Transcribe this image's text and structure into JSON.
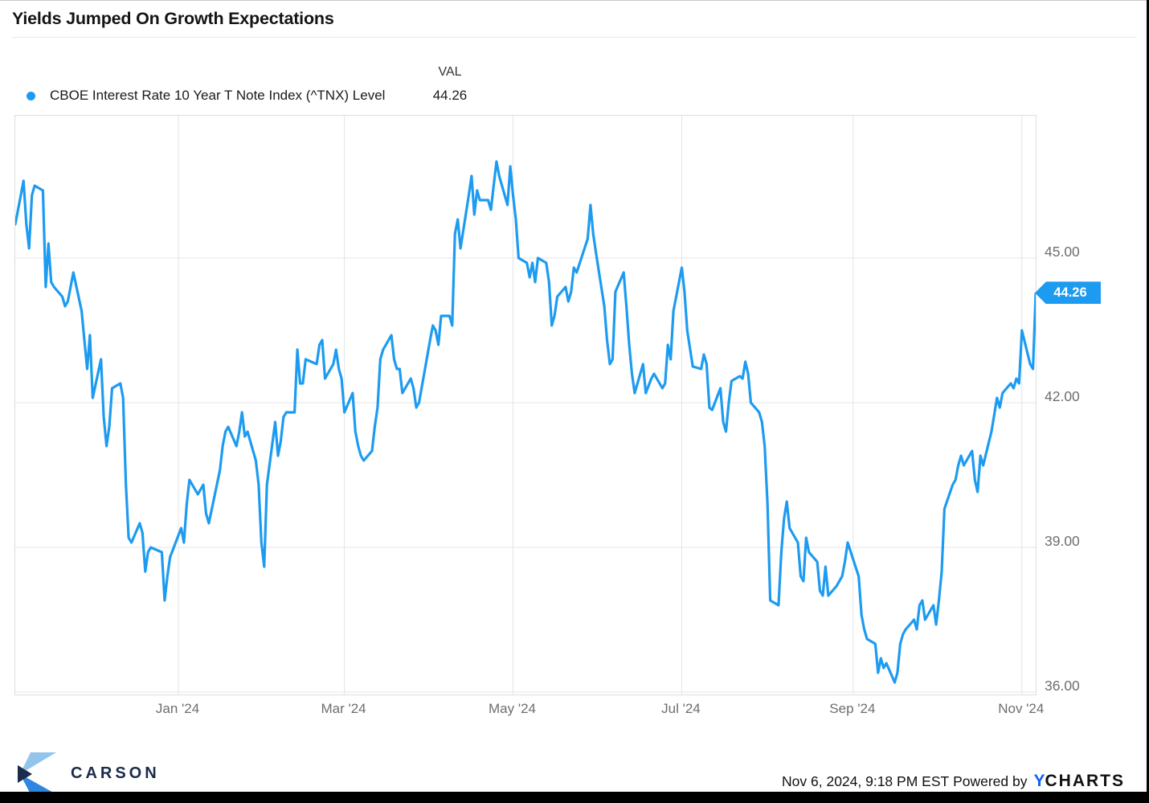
{
  "title": "Yields Jumped On Growth Expectations",
  "legend": {
    "val_header": "VAL",
    "series_label": "CBOE Interest Rate 10 Year T Note Index (^TNX) Level",
    "value": "44.26"
  },
  "badge": {
    "text": "44.26"
  },
  "colors": {
    "accent": "#1d9bf0",
    "grid": "#e4e4e4",
    "axis_text": "#6e6e6e",
    "carson_navy": "#1b2b4b",
    "carson_light": "#93c4ec",
    "carson_mid": "#2e86e0",
    "ycharts_blue": "#0b63f6"
  },
  "footer": {
    "carson": "CARSON",
    "timestamp": "Nov 6, 2024, 9:18 PM EST",
    "powered_by": "Powered by",
    "ycharts_y": "Y",
    "ycharts_rest": "CHARTS"
  },
  "chart_data": {
    "type": "line",
    "title": "Yields Jumped On Growth Expectations",
    "series_name": "CBOE Interest Rate 10 Year T Note Index (^TNX) Level",
    "xlabel": "",
    "ylabel": "",
    "legend_position": "top-left",
    "grid": true,
    "ylim": [
      35.95,
      47.95
    ],
    "x_range_days": 369,
    "last_value": 44.26,
    "y_ticks": [
      {
        "label": "45.00",
        "value": 45
      },
      {
        "label": "42.00",
        "value": 42
      },
      {
        "label": "39.00",
        "value": 39
      },
      {
        "label": "36.00",
        "value": 36
      }
    ],
    "x_ticks": [
      {
        "label": "Jan '24",
        "day": 59
      },
      {
        "label": "Mar '24",
        "day": 119
      },
      {
        "label": "May '24",
        "day": 180
      },
      {
        "label": "Jul '24",
        "day": 241
      },
      {
        "label": "Sep '24",
        "day": 303
      },
      {
        "label": "Nov '24",
        "day": 364
      }
    ],
    "points": [
      [
        0,
        45.7
      ],
      [
        3,
        46.6
      ],
      [
        4,
        45.7
      ],
      [
        5,
        45.2
      ],
      [
        6,
        46.3
      ],
      [
        7,
        46.5
      ],
      [
        10,
        46.4
      ],
      [
        11,
        44.4
      ],
      [
        12,
        45.3
      ],
      [
        13,
        44.5
      ],
      [
        14,
        44.4
      ],
      [
        17,
        44.2
      ],
      [
        18,
        44.0
      ],
      [
        19,
        44.1
      ],
      [
        21,
        44.7
      ],
      [
        24,
        43.9
      ],
      [
        25,
        43.3
      ],
      [
        26,
        42.7
      ],
      [
        27,
        43.4
      ],
      [
        28,
        42.1
      ],
      [
        31,
        42.9
      ],
      [
        32,
        41.7
      ],
      [
        33,
        41.1
      ],
      [
        34,
        41.5
      ],
      [
        35,
        42.3
      ],
      [
        38,
        42.4
      ],
      [
        39,
        42.1
      ],
      [
        40,
        40.3
      ],
      [
        41,
        39.2
      ],
      [
        42,
        39.1
      ],
      [
        45,
        39.5
      ],
      [
        46,
        39.3
      ],
      [
        47,
        38.5
      ],
      [
        48,
        38.9
      ],
      [
        49,
        39.0
      ],
      [
        53,
        38.9
      ],
      [
        54,
        37.9
      ],
      [
        55,
        38.4
      ],
      [
        56,
        38.8
      ],
      [
        60,
        39.4
      ],
      [
        61,
        39.1
      ],
      [
        62,
        39.9
      ],
      [
        63,
        40.4
      ],
      [
        66,
        40.1
      ],
      [
        67,
        40.2
      ],
      [
        68,
        40.3
      ],
      [
        69,
        39.7
      ],
      [
        70,
        39.5
      ],
      [
        74,
        40.6
      ],
      [
        75,
        41.1
      ],
      [
        76,
        41.4
      ],
      [
        77,
        41.5
      ],
      [
        80,
        41.1
      ],
      [
        81,
        41.4
      ],
      [
        82,
        41.8
      ],
      [
        83,
        41.3
      ],
      [
        84,
        41.4
      ],
      [
        87,
        40.8
      ],
      [
        88,
        40.3
      ],
      [
        89,
        39.1
      ],
      [
        90,
        38.6
      ],
      [
        91,
        40.3
      ],
      [
        94,
        41.6
      ],
      [
        95,
        40.9
      ],
      [
        96,
        41.2
      ],
      [
        97,
        41.7
      ],
      [
        98,
        41.8
      ],
      [
        101,
        41.8
      ],
      [
        102,
        43.1
      ],
      [
        103,
        42.4
      ],
      [
        104,
        42.4
      ],
      [
        105,
        42.9
      ],
      [
        109,
        42.8
      ],
      [
        110,
        43.2
      ],
      [
        111,
        43.3
      ],
      [
        112,
        42.5
      ],
      [
        115,
        42.8
      ],
      [
        116,
        43.1
      ],
      [
        117,
        42.7
      ],
      [
        118,
        42.5
      ],
      [
        119,
        41.8
      ],
      [
        122,
        42.2
      ],
      [
        123,
        41.4
      ],
      [
        124,
        41.1
      ],
      [
        125,
        40.9
      ],
      [
        126,
        40.8
      ],
      [
        129,
        41.0
      ],
      [
        130,
        41.5
      ],
      [
        131,
        41.9
      ],
      [
        132,
        42.9
      ],
      [
        133,
        43.1
      ],
      [
        136,
        43.4
      ],
      [
        137,
        42.9
      ],
      [
        138,
        42.7
      ],
      [
        139,
        42.7
      ],
      [
        140,
        42.2
      ],
      [
        143,
        42.5
      ],
      [
        144,
        42.3
      ],
      [
        145,
        41.9
      ],
      [
        146,
        42.0
      ],
      [
        150,
        43.3
      ],
      [
        151,
        43.6
      ],
      [
        152,
        43.5
      ],
      [
        153,
        43.2
      ],
      [
        154,
        43.8
      ],
      [
        157,
        43.8
      ],
      [
        158,
        43.6
      ],
      [
        159,
        45.5
      ],
      [
        160,
        45.8
      ],
      [
        161,
        45.2
      ],
      [
        164,
        46.3
      ],
      [
        165,
        46.7
      ],
      [
        166,
        45.9
      ],
      [
        167,
        46.4
      ],
      [
        168,
        46.2
      ],
      [
        171,
        46.2
      ],
      [
        172,
        46.0
      ],
      [
        173,
        46.5
      ],
      [
        174,
        47.0
      ],
      [
        175,
        46.7
      ],
      [
        178,
        46.1
      ],
      [
        179,
        46.9
      ],
      [
        180,
        46.3
      ],
      [
        181,
        45.8
      ],
      [
        182,
        45.0
      ],
      [
        185,
        44.9
      ],
      [
        186,
        44.6
      ],
      [
        187,
        44.9
      ],
      [
        188,
        44.5
      ],
      [
        189,
        45.0
      ],
      [
        192,
        44.9
      ],
      [
        193,
        44.5
      ],
      [
        194,
        43.6
      ],
      [
        195,
        43.8
      ],
      [
        196,
        44.2
      ],
      [
        199,
        44.4
      ],
      [
        200,
        44.1
      ],
      [
        201,
        44.3
      ],
      [
        202,
        44.8
      ],
      [
        203,
        44.7
      ],
      [
        207,
        45.4
      ],
      [
        208,
        46.1
      ],
      [
        209,
        45.5
      ],
      [
        210,
        45.1
      ],
      [
        213,
        44.0
      ],
      [
        214,
        43.3
      ],
      [
        215,
        42.8
      ],
      [
        216,
        42.9
      ],
      [
        217,
        44.3
      ],
      [
        220,
        44.7
      ],
      [
        221,
        44.0
      ],
      [
        222,
        43.2
      ],
      [
        223,
        42.6
      ],
      [
        224,
        42.2
      ],
      [
        227,
        42.8
      ],
      [
        228,
        42.2
      ],
      [
        230,
        42.5
      ],
      [
        231,
        42.6
      ],
      [
        234,
        42.3
      ],
      [
        235,
        42.4
      ],
      [
        236,
        43.2
      ],
      [
        237,
        42.9
      ],
      [
        238,
        43.9
      ],
      [
        241,
        44.8
      ],
      [
        242,
        44.3
      ],
      [
        243,
        43.5
      ],
      [
        245,
        42.75
      ],
      [
        248,
        42.7
      ],
      [
        249,
        43.0
      ],
      [
        250,
        42.8
      ],
      [
        251,
        41.9
      ],
      [
        252,
        41.85
      ],
      [
        255,
        42.3
      ],
      [
        256,
        41.6
      ],
      [
        257,
        41.4
      ],
      [
        258,
        42.0
      ],
      [
        259,
        42.45
      ],
      [
        262,
        42.55
      ],
      [
        263,
        42.5
      ],
      [
        264,
        42.85
      ],
      [
        265,
        42.6
      ],
      [
        266,
        42.0
      ],
      [
        269,
        41.8
      ],
      [
        270,
        41.6
      ],
      [
        271,
        41.1
      ],
      [
        272,
        39.9
      ],
      [
        273,
        37.9
      ],
      [
        276,
        37.8
      ],
      [
        277,
        38.9
      ],
      [
        278,
        39.6
      ],
      [
        279,
        39.95
      ],
      [
        280,
        39.4
      ],
      [
        283,
        39.1
      ],
      [
        284,
        38.4
      ],
      [
        285,
        38.3
      ],
      [
        286,
        39.2
      ],
      [
        287,
        38.9
      ],
      [
        290,
        38.7
      ],
      [
        291,
        38.1
      ],
      [
        292,
        38.0
      ],
      [
        293,
        38.6
      ],
      [
        294,
        38.0
      ],
      [
        297,
        38.2
      ],
      [
        298,
        38.3
      ],
      [
        299,
        38.4
      ],
      [
        300,
        38.7
      ],
      [
        301,
        39.1
      ],
      [
        305,
        38.4
      ],
      [
        306,
        37.6
      ],
      [
        307,
        37.3
      ],
      [
        308,
        37.1
      ],
      [
        311,
        37.0
      ],
      [
        312,
        36.4
      ],
      [
        313,
        36.7
      ],
      [
        314,
        36.5
      ],
      [
        315,
        36.6
      ],
      [
        318,
        36.2
      ],
      [
        319,
        36.4
      ],
      [
        320,
        37.0
      ],
      [
        321,
        37.2
      ],
      [
        322,
        37.3
      ],
      [
        325,
        37.5
      ],
      [
        326,
        37.3
      ],
      [
        327,
        37.8
      ],
      [
        328,
        37.9
      ],
      [
        329,
        37.5
      ],
      [
        332,
        37.8
      ],
      [
        333,
        37.4
      ],
      [
        334,
        37.9
      ],
      [
        335,
        38.5
      ],
      [
        336,
        39.8
      ],
      [
        339,
        40.3
      ],
      [
        340,
        40.4
      ],
      [
        341,
        40.7
      ],
      [
        342,
        40.9
      ],
      [
        343,
        40.7
      ],
      [
        346,
        41.0
      ],
      [
        347,
        40.4
      ],
      [
        348,
        40.15
      ],
      [
        349,
        40.9
      ],
      [
        350,
        40.7
      ],
      [
        353,
        41.4
      ],
      [
        354,
        41.75
      ],
      [
        355,
        42.1
      ],
      [
        356,
        41.9
      ],
      [
        357,
        42.2
      ],
      [
        360,
        42.4
      ],
      [
        361,
        42.3
      ],
      [
        362,
        42.5
      ],
      [
        363,
        42.4
      ],
      [
        364,
        43.5
      ],
      [
        367,
        42.8
      ],
      [
        368,
        42.7
      ],
      [
        369,
        44.26
      ]
    ]
  }
}
